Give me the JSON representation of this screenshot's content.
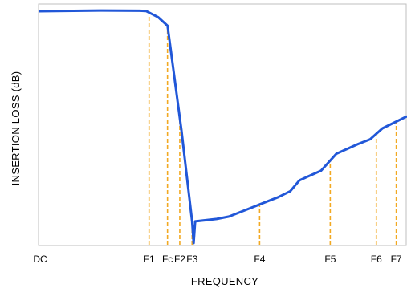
{
  "chart_data": {
    "type": "line",
    "title": "",
    "xlabel": "FREQUENCY",
    "ylabel": "INSERTION LOSS (dB)",
    "x_tick_labels": [
      "DC",
      "F1",
      "Fc",
      "F2",
      "F3",
      "F4",
      "F5",
      "F6",
      "F7"
    ],
    "x_tick_positions": [
      0,
      3.6,
      4.2,
      4.6,
      5.0,
      7.2,
      9.5,
      11.0,
      11.65
    ],
    "xlim": [
      0,
      12
    ],
    "ylim": [
      0,
      100
    ],
    "grid": false,
    "y_ticks_shown": false,
    "series": [
      {
        "name": "",
        "color": "#2157d8",
        "points": [
          [
            0,
            97
          ],
          [
            2.0,
            97.3
          ],
          [
            3.3,
            97.2
          ],
          [
            3.5,
            97.1
          ],
          [
            3.9,
            94.5
          ],
          [
            4.2,
            91
          ],
          [
            4.65,
            48
          ],
          [
            5.0,
            10
          ],
          [
            5.05,
            1
          ],
          [
            5.1,
            10
          ],
          [
            5.8,
            11
          ],
          [
            6.2,
            12
          ],
          [
            6.8,
            15
          ],
          [
            7.2,
            17
          ],
          [
            7.8,
            20
          ],
          [
            8.2,
            22.5
          ],
          [
            8.5,
            27
          ],
          [
            9.2,
            31
          ],
          [
            9.7,
            38
          ],
          [
            10.4,
            42
          ],
          [
            10.8,
            44
          ],
          [
            11.2,
            48.5
          ],
          [
            11.6,
            51
          ],
          [
            12.0,
            53.5
          ]
        ]
      }
    ],
    "markers": {
      "color": "#f2a922",
      "style": "dashed",
      "at_x": [
        3.6,
        4.2,
        4.6,
        5.0,
        7.2,
        9.5,
        11.0,
        11.65
      ]
    }
  }
}
